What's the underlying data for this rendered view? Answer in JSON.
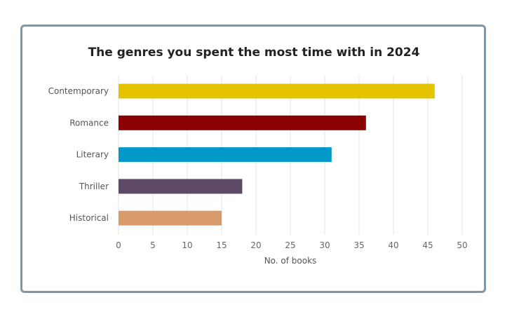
{
  "chart_data": {
    "type": "bar",
    "orientation": "horizontal",
    "title": "The genres you spent the most time with in 2024",
    "xlabel": "No. of books",
    "ylabel": "",
    "categories": [
      "Contemporary",
      "Romance",
      "Literary",
      "Thriller",
      "Historical"
    ],
    "values": [
      46,
      36,
      31,
      18,
      15
    ],
    "colors": [
      "#e6c300",
      "#8b0000",
      "#0099c9",
      "#5e4a66",
      "#d99a6c"
    ],
    "xlim": [
      0,
      50
    ],
    "xticks": [
      "0",
      "5",
      "10",
      "15",
      "20",
      "25",
      "30",
      "35",
      "40",
      "45",
      "50"
    ],
    "grid": "vertical",
    "legend": "none"
  }
}
